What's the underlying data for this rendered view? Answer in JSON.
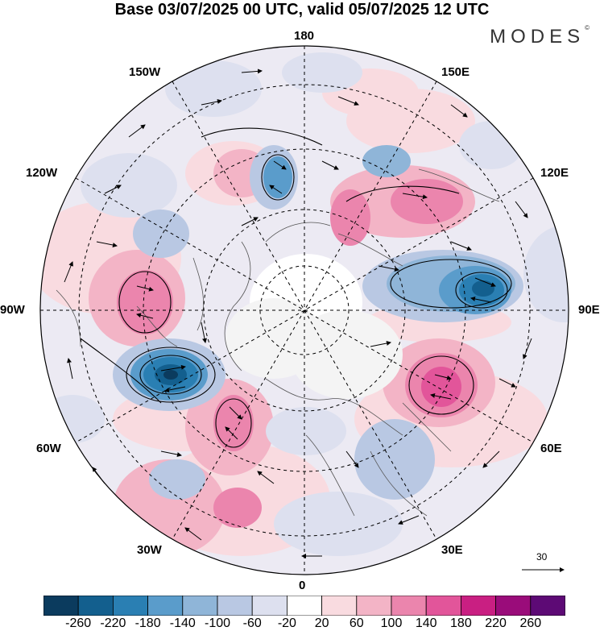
{
  "header": {
    "title": "Base 03/07/2025 00 UTC, valid 05/07/2025 12 UTC",
    "brand": "MODES",
    "brand_mark": "©"
  },
  "map": {
    "projection": "north-polar-stereographic",
    "longitude_labels": {
      "top": "180",
      "bottom": "0",
      "left": "90W",
      "right": "90E",
      "upper_left_1": "150W",
      "upper_left_2": "120W",
      "lower_left_1": "60W",
      "lower_left_2": "30W",
      "upper_right_1": "150E",
      "upper_right_2": "120E",
      "lower_right_1": "60E",
      "lower_right_2": "30E"
    },
    "reference_vector": {
      "value": "30"
    }
  },
  "colorbar": {
    "colors": [
      "#0b3b5e",
      "#135f8e",
      "#2a7fb3",
      "#5a9ccb",
      "#8fb5d8",
      "#b9c8e3",
      "#dde0ef",
      "#ffffff",
      "#f9dbe0",
      "#f3b4c6",
      "#eb85ad",
      "#e2559a",
      "#c91f82",
      "#9a0c7a",
      "#5d0a75"
    ],
    "ticks": [
      "-260",
      "-220",
      "-180",
      "-140",
      "-100",
      "-60",
      "-20",
      "20",
      "60",
      "100",
      "140",
      "180",
      "220",
      "260"
    ]
  },
  "anomalies": {
    "positive_color": "#e2559a",
    "negative_color": "#2a7fb3"
  }
}
